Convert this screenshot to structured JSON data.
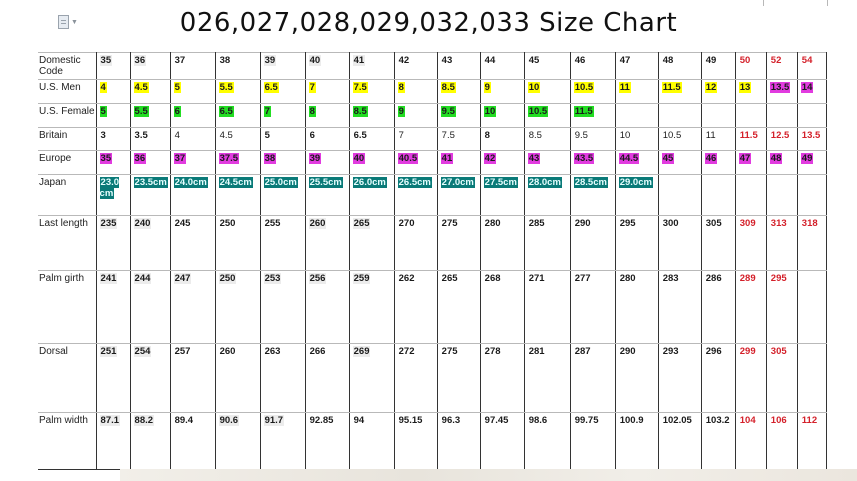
{
  "title": "026,027,028,029,032,033 Size Chart",
  "rows": [
    {
      "key": "domestic",
      "label": "Domestic Code",
      "cells": [
        {
          "v": "35",
          "c": "gray"
        },
        {
          "v": "36",
          "c": "gray"
        },
        {
          "v": "37",
          "c": ""
        },
        {
          "v": "38",
          "c": ""
        },
        {
          "v": "39",
          "c": "gray"
        },
        {
          "v": "40",
          "c": "gray"
        },
        {
          "v": "41",
          "c": "gray"
        },
        {
          "v": "42",
          "c": ""
        },
        {
          "v": "43",
          "c": ""
        },
        {
          "v": "44",
          "c": ""
        },
        {
          "v": "45",
          "c": ""
        },
        {
          "v": "46",
          "c": ""
        },
        {
          "v": "47",
          "c": ""
        },
        {
          "v": "48",
          "c": ""
        },
        {
          "v": "49",
          "c": ""
        },
        {
          "v": "50",
          "c": "red"
        },
        {
          "v": "52",
          "c": "red"
        },
        {
          "v": "54",
          "c": "red"
        }
      ]
    },
    {
      "key": "us_men",
      "label": "U.S. Men",
      "cells": [
        {
          "v": "4",
          "c": "yellow"
        },
        {
          "v": "4.5",
          "c": "yellow"
        },
        {
          "v": "5",
          "c": "yellow"
        },
        {
          "v": "5.5",
          "c": "yellow"
        },
        {
          "v": "6.5",
          "c": "yellow"
        },
        {
          "v": "7",
          "c": "yellow"
        },
        {
          "v": "7.5",
          "c": "yellow"
        },
        {
          "v": "8",
          "c": "yellow"
        },
        {
          "v": "8.5",
          "c": "yellow"
        },
        {
          "v": "9",
          "c": "yellow"
        },
        {
          "v": "10",
          "c": "yellow"
        },
        {
          "v": "10.5",
          "c": "yellow"
        },
        {
          "v": "11",
          "c": "yellow"
        },
        {
          "v": "11.5",
          "c": "yellow"
        },
        {
          "v": "12",
          "c": "yellow"
        },
        {
          "v": "13",
          "c": "yellow"
        },
        {
          "v": "13.5",
          "c": "magenta"
        },
        {
          "v": "14",
          "c": "magenta"
        }
      ]
    },
    {
      "key": "us_female",
      "label": "U.S. Female",
      "cells": [
        {
          "v": "5",
          "c": "green"
        },
        {
          "v": "5.5",
          "c": "green"
        },
        {
          "v": "6",
          "c": "green"
        },
        {
          "v": "6.5",
          "c": "green"
        },
        {
          "v": "7",
          "c": "green"
        },
        {
          "v": "8",
          "c": "green"
        },
        {
          "v": "8.5",
          "c": "green"
        },
        {
          "v": "9",
          "c": "green"
        },
        {
          "v": "9.5",
          "c": "green"
        },
        {
          "v": "10",
          "c": "green"
        },
        {
          "v": "10.5",
          "c": "green"
        },
        {
          "v": "11.5",
          "c": "green"
        },
        {
          "v": "",
          "c": ""
        },
        {
          "v": "",
          "c": ""
        },
        {
          "v": "",
          "c": ""
        },
        {
          "v": "",
          "c": ""
        },
        {
          "v": "",
          "c": ""
        },
        {
          "v": "",
          "c": ""
        }
      ]
    },
    {
      "key": "britain",
      "label": "Britain",
      "cells": [
        {
          "v": "3",
          "c": ""
        },
        {
          "v": "3.5",
          "c": ""
        },
        {
          "v": "4",
          "c": "plain"
        },
        {
          "v": "4.5",
          "c": "plain"
        },
        {
          "v": "5",
          "c": ""
        },
        {
          "v": "6",
          "c": ""
        },
        {
          "v": "6.5",
          "c": ""
        },
        {
          "v": "7",
          "c": "plain"
        },
        {
          "v": "7.5",
          "c": "plain"
        },
        {
          "v": "8",
          "c": ""
        },
        {
          "v": "8.5",
          "c": "plain"
        },
        {
          "v": "9.5",
          "c": "plain"
        },
        {
          "v": "10",
          "c": "plain"
        },
        {
          "v": "10.5",
          "c": "plain"
        },
        {
          "v": "11",
          "c": "plain"
        },
        {
          "v": "11.5",
          "c": "red"
        },
        {
          "v": "12.5",
          "c": "red"
        },
        {
          "v": "13.5",
          "c": "red"
        }
      ]
    },
    {
      "key": "europe",
      "label": "Europe",
      "cells": [
        {
          "v": "35",
          "c": "magenta"
        },
        {
          "v": "36",
          "c": "magenta"
        },
        {
          "v": "37",
          "c": "magenta"
        },
        {
          "v": "37.5",
          "c": "magenta"
        },
        {
          "v": "38",
          "c": "magenta"
        },
        {
          "v": "39",
          "c": "magenta"
        },
        {
          "v": "40",
          "c": "magenta"
        },
        {
          "v": "40.5",
          "c": "magenta"
        },
        {
          "v": "41",
          "c": "magenta"
        },
        {
          "v": "42",
          "c": "magenta"
        },
        {
          "v": "43",
          "c": "magenta"
        },
        {
          "v": "43.5",
          "c": "magenta"
        },
        {
          "v": "44.5",
          "c": "magenta"
        },
        {
          "v": "45",
          "c": "magenta"
        },
        {
          "v": "46",
          "c": "magenta"
        },
        {
          "v": "47",
          "c": "magenta"
        },
        {
          "v": "48",
          "c": "magenta"
        },
        {
          "v": "49",
          "c": "magenta"
        }
      ]
    },
    {
      "key": "japan",
      "label": "Japan",
      "cells": [
        {
          "v": "23.0 cm",
          "c": "teal"
        },
        {
          "v": "23.5cm",
          "c": "teal"
        },
        {
          "v": "24.0cm",
          "c": "teal"
        },
        {
          "v": "24.5cm",
          "c": "teal"
        },
        {
          "v": "25.0cm",
          "c": "teal"
        },
        {
          "v": "25.5cm",
          "c": "teal"
        },
        {
          "v": "26.0cm",
          "c": "teal"
        },
        {
          "v": "26.5cm",
          "c": "teal"
        },
        {
          "v": "27.0cm",
          "c": "teal"
        },
        {
          "v": "27.5cm",
          "c": "teal"
        },
        {
          "v": "28.0cm",
          "c": "teal"
        },
        {
          "v": "28.5cm",
          "c": "teal"
        },
        {
          "v": "29.0cm",
          "c": "teal"
        },
        {
          "v": "",
          "c": ""
        },
        {
          "v": "",
          "c": ""
        },
        {
          "v": "",
          "c": ""
        },
        {
          "v": "",
          "c": ""
        },
        {
          "v": "",
          "c": ""
        }
      ]
    },
    {
      "key": "last_length",
      "label": "Last length",
      "cells": [
        {
          "v": "235",
          "c": "gray"
        },
        {
          "v": "240",
          "c": "gray"
        },
        {
          "v": "245",
          "c": ""
        },
        {
          "v": "250",
          "c": ""
        },
        {
          "v": "255",
          "c": ""
        },
        {
          "v": "260",
          "c": "gray"
        },
        {
          "v": "265",
          "c": "gray"
        },
        {
          "v": "270",
          "c": ""
        },
        {
          "v": "275",
          "c": ""
        },
        {
          "v": "280",
          "c": ""
        },
        {
          "v": "285",
          "c": ""
        },
        {
          "v": "290",
          "c": ""
        },
        {
          "v": "295",
          "c": ""
        },
        {
          "v": "300",
          "c": ""
        },
        {
          "v": "305",
          "c": ""
        },
        {
          "v": "309",
          "c": "red"
        },
        {
          "v": "313",
          "c": "red"
        },
        {
          "v": "318",
          "c": "red"
        }
      ]
    },
    {
      "key": "palm_girth",
      "label": "Palm girth",
      "cells": [
        {
          "v": "241",
          "c": "gray"
        },
        {
          "v": "244",
          "c": "gray"
        },
        {
          "v": "247",
          "c": "gray"
        },
        {
          "v": "250",
          "c": "gray"
        },
        {
          "v": "253",
          "c": "gray"
        },
        {
          "v": "256",
          "c": "gray"
        },
        {
          "v": "259",
          "c": "gray"
        },
        {
          "v": "262",
          "c": ""
        },
        {
          "v": "265",
          "c": ""
        },
        {
          "v": "268",
          "c": ""
        },
        {
          "v": "271",
          "c": ""
        },
        {
          "v": "277",
          "c": ""
        },
        {
          "v": "280",
          "c": ""
        },
        {
          "v": "283",
          "c": ""
        },
        {
          "v": "286",
          "c": ""
        },
        {
          "v": "289",
          "c": "red"
        },
        {
          "v": "295",
          "c": "red"
        },
        {
          "v": "",
          "c": ""
        }
      ]
    },
    {
      "key": "dorsal",
      "label": "Dorsal",
      "cells": [
        {
          "v": "251",
          "c": "gray"
        },
        {
          "v": "254",
          "c": "gray"
        },
        {
          "v": "257",
          "c": ""
        },
        {
          "v": "260",
          "c": ""
        },
        {
          "v": "263",
          "c": ""
        },
        {
          "v": "266",
          "c": ""
        },
        {
          "v": "269",
          "c": "gray"
        },
        {
          "v": "272",
          "c": ""
        },
        {
          "v": "275",
          "c": ""
        },
        {
          "v": "278",
          "c": ""
        },
        {
          "v": "281",
          "c": ""
        },
        {
          "v": "287",
          "c": ""
        },
        {
          "v": "290",
          "c": ""
        },
        {
          "v": "293",
          "c": ""
        },
        {
          "v": "296",
          "c": ""
        },
        {
          "v": "299",
          "c": "red"
        },
        {
          "v": "305",
          "c": "red"
        },
        {
          "v": "",
          "c": ""
        }
      ]
    },
    {
      "key": "palm_width",
      "label": "Palm width",
      "cells": [
        {
          "v": "87.1",
          "c": "gray"
        },
        {
          "v": "88.2",
          "c": "gray"
        },
        {
          "v": "89.4",
          "c": ""
        },
        {
          "v": "90.6",
          "c": "gray"
        },
        {
          "v": "91.7",
          "c": "gray"
        },
        {
          "v": "92.85",
          "c": ""
        },
        {
          "v": "94",
          "c": ""
        },
        {
          "v": "95.15",
          "c": ""
        },
        {
          "v": "96.3",
          "c": ""
        },
        {
          "v": "97.45",
          "c": ""
        },
        {
          "v": "98.6",
          "c": ""
        },
        {
          "v": "99.75",
          "c": ""
        },
        {
          "v": "100.9",
          "c": ""
        },
        {
          "v": "102.05",
          "c": ""
        },
        {
          "v": "103.2",
          "c": ""
        },
        {
          "v": "104",
          "c": "red"
        },
        {
          "v": "106",
          "c": "red"
        },
        {
          "v": "112",
          "c": "red"
        }
      ]
    }
  ]
}
